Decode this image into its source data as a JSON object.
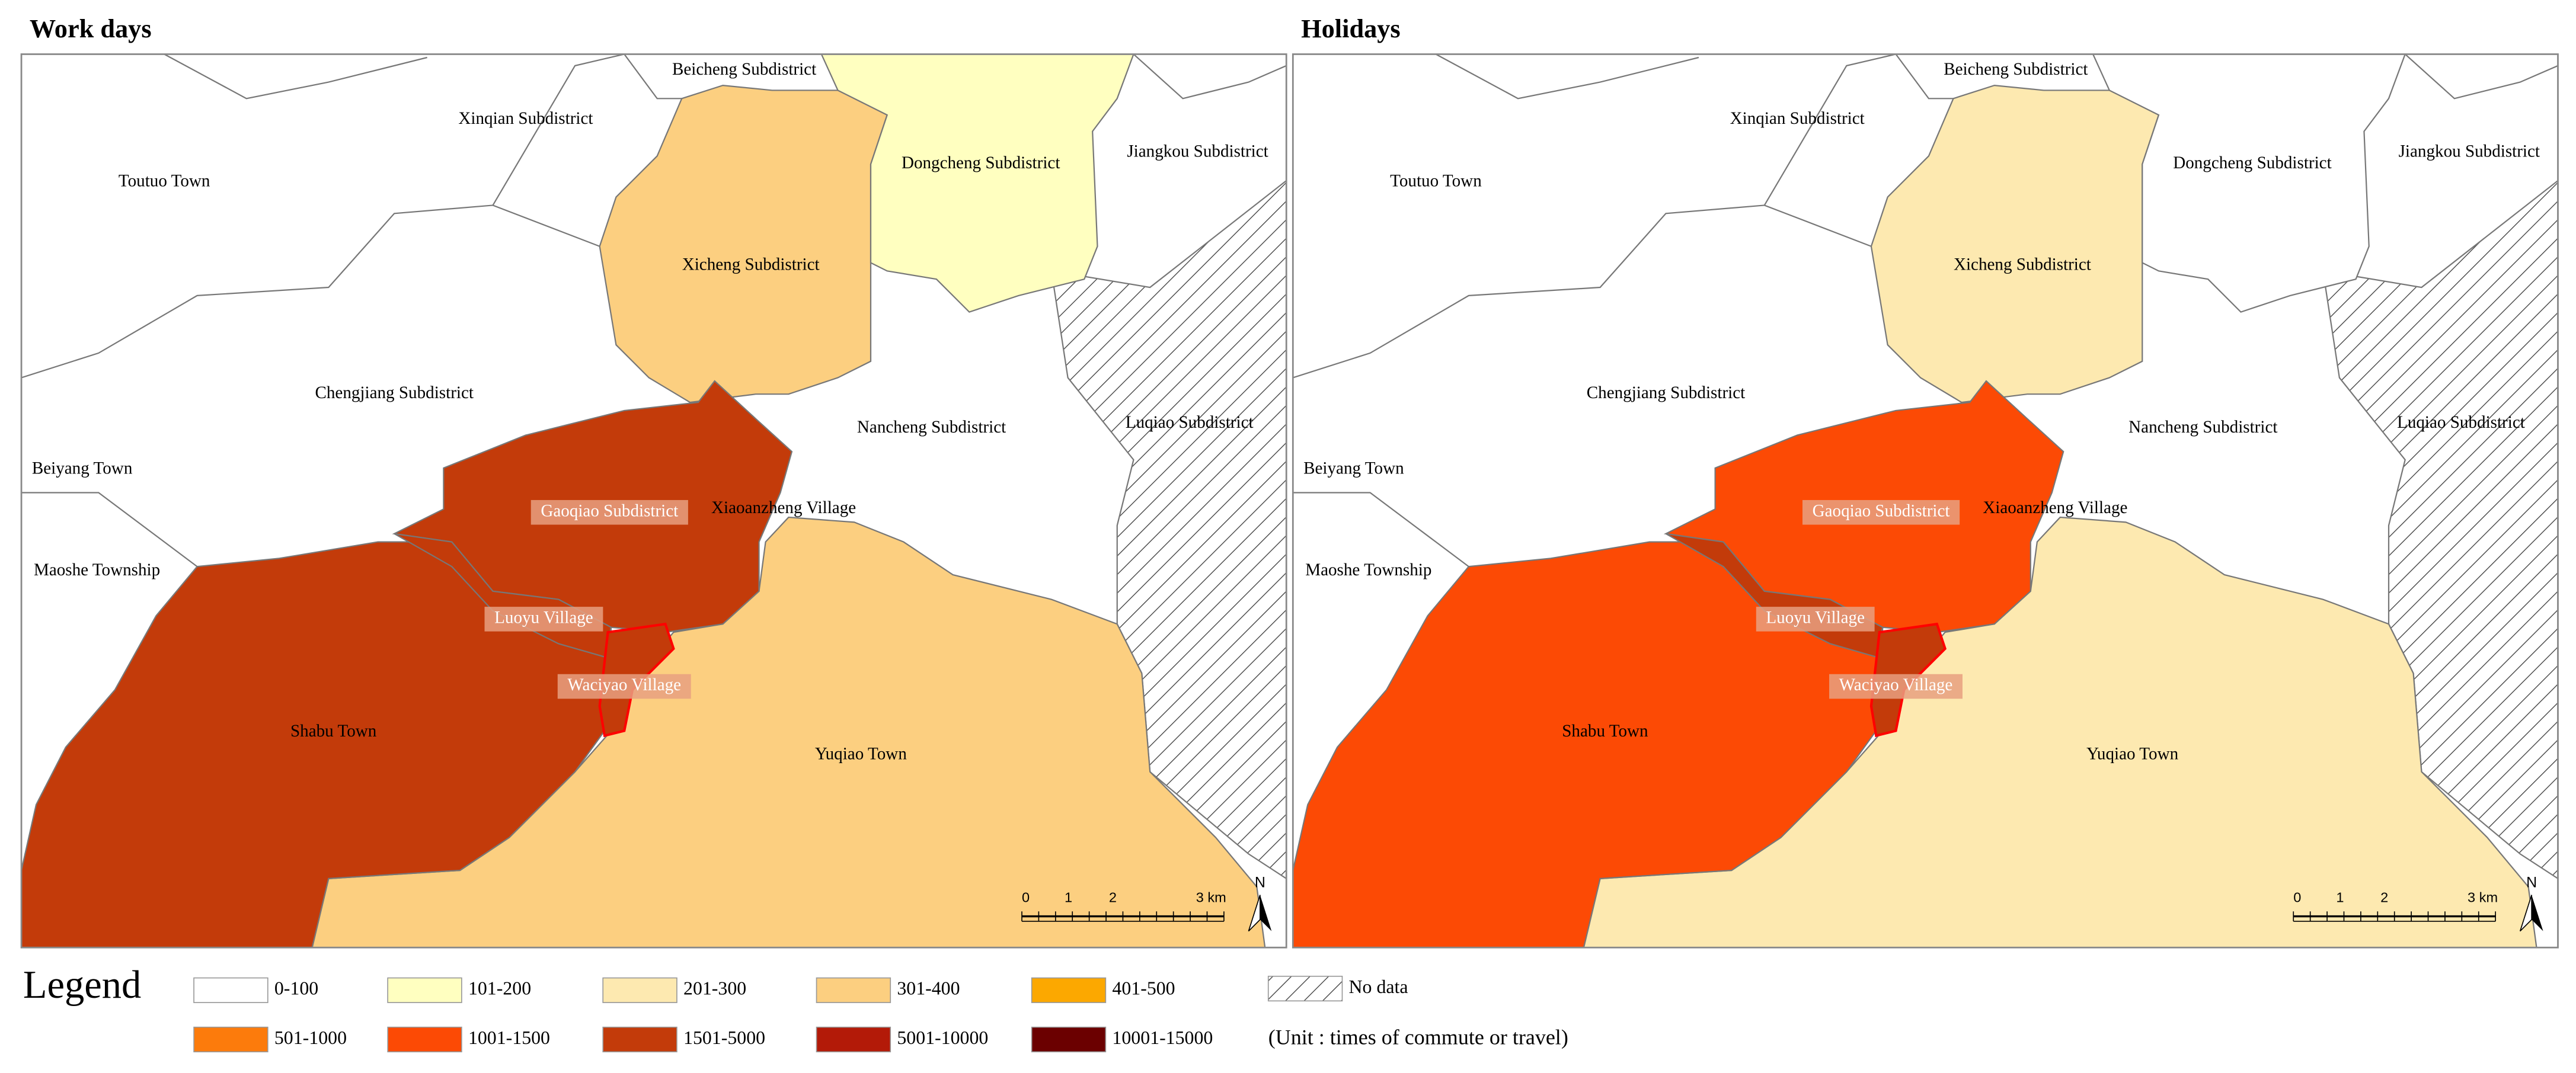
{
  "panels": [
    {
      "title": "Work days",
      "labels": [
        "Beicheng Subdistrict",
        "Xinqian Subdistrict",
        "Toutuo Town",
        "Dongcheng Subdistrict",
        "Jiangkou Subdistrict",
        "Xicheng Subdistrict",
        "Chengjiang Subdistrict",
        "Nancheng Subdistrict",
        "Luqiao Subdistrict",
        "Beiyang Town",
        "Gaoqiao Subdistrict",
        "Xiaoanzheng Village",
        "Maoshe Township",
        "Luoyu Village",
        "Waciyao Village",
        "Shabu Town",
        "Yuqiao Town"
      ]
    },
    {
      "title": "Holidays",
      "labels": [
        "Beicheng Subdistrict",
        "Xinqian Subdistrict",
        "Toutuo Town",
        "Dongcheng Subdistrict",
        "Jiangkou Subdistrict",
        "Xicheng Subdistrict",
        "Chengjiang Subdistrict",
        "Nancheng Subdistrict",
        "Luqiao Subdistrict",
        "Beiyang Town",
        "Gaoqiao Subdistrict",
        "Xiaoanzheng Village",
        "Maoshe Township",
        "Luoyu Village",
        "Waciyao Village",
        "Shabu Town",
        "Yuqiao Town"
      ]
    }
  ],
  "scale_bar": {
    "ticks": [
      "0",
      "1",
      "2",
      "3 km"
    ],
    "north": "N"
  },
  "legend": {
    "title": "Legend",
    "items": [
      {
        "label": "0-100",
        "color": "#ffffff"
      },
      {
        "label": "101-200",
        "color": "#ffffc0"
      },
      {
        "label": "201-300",
        "color": "#fde9b0"
      },
      {
        "label": "301-400",
        "color": "#fccf80"
      },
      {
        "label": "401-500",
        "color": "#fca800"
      },
      {
        "label": "501-1000",
        "color": "#fc7b0c"
      },
      {
        "label": "1001-1500",
        "color": "#fc4a05"
      },
      {
        "label": "1501-5000",
        "color": "#c33b0a"
      },
      {
        "label": "5001-10000",
        "color": "#b31a08"
      },
      {
        "label": "10001-15000",
        "color": "#6b0000"
      }
    ],
    "no_data": "No data",
    "unit": "(Unit : times of commute or travel)"
  }
}
